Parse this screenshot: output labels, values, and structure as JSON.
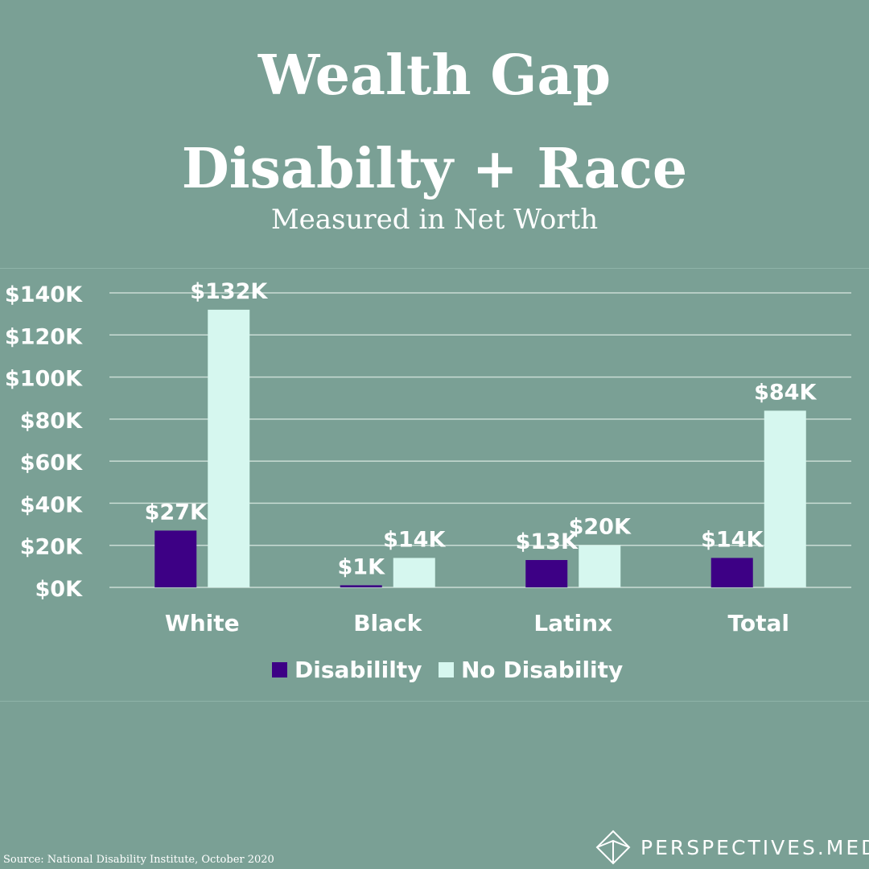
{
  "title_line1": "Wealth Gap",
  "title_line2": "Disabilty + Race",
  "subtitle": "Measured in Net Worth",
  "source": "Source:  National Disability Institute, October 2020",
  "brand": "PERSPECTIVES.MEDIA",
  "brand_icon": "diamond-logo-icon",
  "colors": {
    "background": "#7aa095",
    "disability": "#3d0085",
    "no_disability": "#d6f7ef",
    "grid": "#c9dcd5",
    "text": "#ffffff"
  },
  "chart_data": {
    "type": "bar",
    "categories": [
      "White",
      "Black",
      "Latinx",
      "Total"
    ],
    "series": [
      {
        "name": "Disabililty",
        "values": [
          27,
          1,
          13,
          14
        ],
        "labels": [
          "$27K",
          "$1K",
          "$13K",
          "$14K"
        ]
      },
      {
        "name": "No Disability",
        "values": [
          132,
          14,
          20,
          84
        ],
        "labels": [
          "$132K",
          "$14K",
          "$20K",
          "$84K"
        ]
      }
    ],
    "ylim": [
      0,
      140
    ],
    "yticks": [
      0,
      20,
      40,
      60,
      80,
      100,
      120,
      140
    ],
    "ytick_labels": [
      "$0K",
      "$20K",
      "$40K",
      "$60K",
      "$80K",
      "$100K",
      "$120K",
      "$140K"
    ],
    "grid": true,
    "legend": "bottom"
  }
}
